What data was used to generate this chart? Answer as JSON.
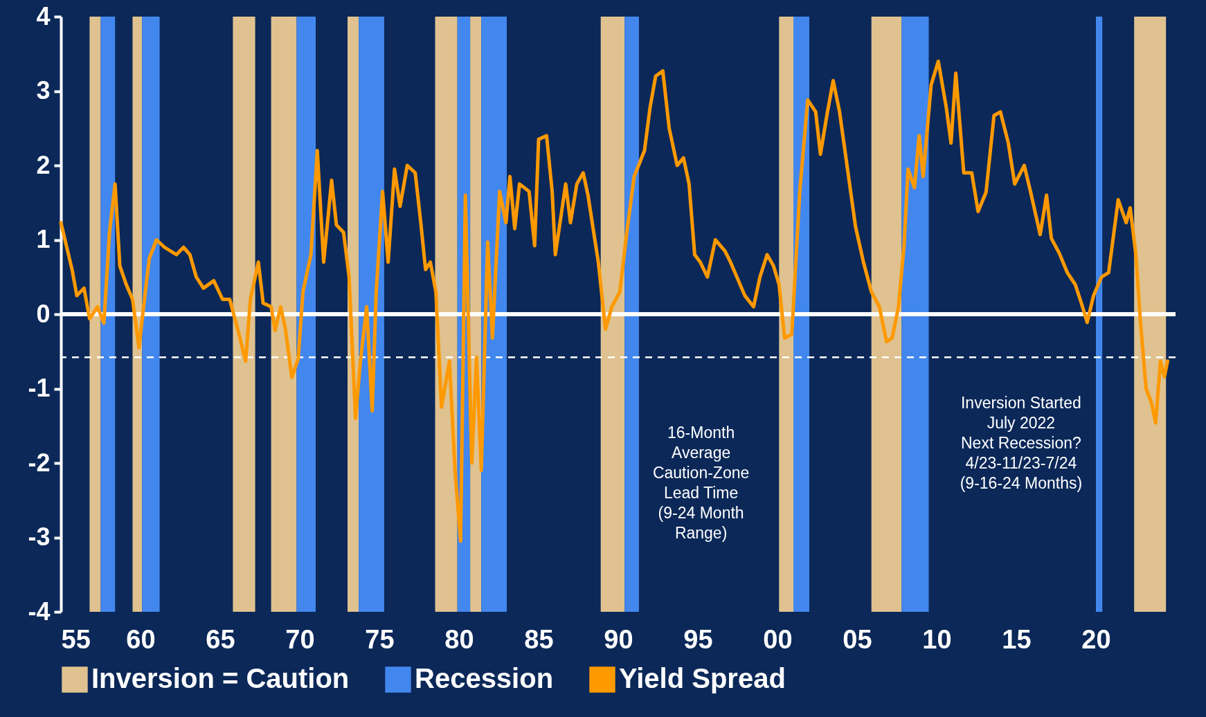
{
  "chart_data": {
    "type": "line",
    "xlim": [
      1955,
      2025
    ],
    "xticks": [
      {
        "value": 1955,
        "label": "55"
      },
      {
        "value": 1960,
        "label": "60"
      },
      {
        "value": 1965,
        "label": "65"
      },
      {
        "value": 1970,
        "label": "70"
      },
      {
        "value": 1975,
        "label": "75"
      },
      {
        "value": 1980,
        "label": "80"
      },
      {
        "value": 1985,
        "label": "85"
      },
      {
        "value": 1990,
        "label": "90"
      },
      {
        "value": 1995,
        "label": "95"
      },
      {
        "value": 2000,
        "label": "00"
      },
      {
        "value": 2005,
        "label": "05"
      },
      {
        "value": 2010,
        "label": "10"
      },
      {
        "value": 2015,
        "label": "15"
      },
      {
        "value": 2020,
        "label": "20"
      }
    ],
    "ylim": [
      -4,
      4
    ],
    "yticks": [
      -4,
      -3,
      -2,
      -1,
      0,
      1,
      2,
      3,
      4
    ],
    "grid": false,
    "legend": "bottom",
    "series": [
      {
        "name": "Yield Spread",
        "color": "#ff9900",
        "x": [
          1955.0,
          1955.4,
          1955.7,
          1956.0,
          1956.45,
          1956.8,
          1957.3,
          1957.7,
          1958.05,
          1958.4,
          1958.7,
          1959.1,
          1959.5,
          1959.9,
          1960.3,
          1960.55,
          1961.0,
          1961.5,
          1962.25,
          1962.7,
          1963.1,
          1963.5,
          1963.95,
          1964.6,
          1965.15,
          1965.6,
          1966.1,
          1966.6,
          1966.9,
          1967.4,
          1967.7,
          1968.2,
          1968.45,
          1968.8,
          1969.1,
          1969.5,
          1969.9,
          1970.2,
          1970.7,
          1971.1,
          1971.5,
          1972.0,
          1972.3,
          1972.75,
          1973.1,
          1973.5,
          1973.8,
          1974.2,
          1974.55,
          1974.8,
          1975.2,
          1975.55,
          1975.95,
          1976.3,
          1976.75,
          1977.25,
          1977.6,
          1977.9,
          1978.2,
          1978.55,
          1978.9,
          1979.4,
          1979.75,
          1980.1,
          1980.4,
          1980.8,
          1981.1,
          1981.4,
          1981.8,
          1982.1,
          1982.55,
          1982.95,
          1983.2,
          1983.5,
          1983.8,
          1984.4,
          1984.75,
          1985.0,
          1985.5,
          1985.85,
          1986.05,
          1986.7,
          1987.0,
          1987.4,
          1987.8,
          1988.1,
          1988.75,
          1989.2,
          1989.6,
          1990.1,
          1990.55,
          1991.0,
          1991.65,
          1992.0,
          1992.35,
          1992.8,
          1993.2,
          1993.7,
          1994.1,
          1994.45,
          1994.8,
          1995.15,
          1995.6,
          1996.1,
          1996.7,
          1997.05,
          1997.55,
          1997.95,
          1998.5,
          1998.9,
          1999.35,
          1999.75,
          2000.1,
          2000.45,
          2000.9,
          2001.4,
          2001.9,
          2002.4,
          2002.7,
          2003.1,
          2003.5,
          2003.9,
          2004.4,
          2004.9,
          2005.4,
          2005.9,
          2006.4,
          2006.85,
          2007.2,
          2007.6,
          2007.95,
          2008.2,
          2008.6,
          2008.9,
          2009.15,
          2009.65,
          2010.1,
          2010.6,
          2010.9,
          2011.2,
          2011.7,
          2012.2,
          2012.6,
          2013.1,
          2013.6,
          2014.0,
          2014.5,
          2014.9,
          2015.5,
          2015.9,
          2016.5,
          2016.9,
          2017.2,
          2017.7,
          2018.2,
          2018.7,
          2019.1,
          2019.45,
          2019.85,
          2020.35,
          2020.8,
          2021.4,
          2021.9,
          2022.15,
          2022.5,
          2022.8,
          2023.15,
          2023.5,
          2023.75,
          2024.05,
          2024.3,
          2024.5
        ],
        "values": [
          1.23,
          0.87,
          0.6,
          0.25,
          0.35,
          -0.06,
          0.1,
          -0.12,
          1.1,
          1.75,
          0.65,
          0.4,
          0.2,
          -0.45,
          0.3,
          0.75,
          1.0,
          0.9,
          0.8,
          0.9,
          0.8,
          0.5,
          0.35,
          0.45,
          0.2,
          0.2,
          -0.2,
          -0.63,
          0.2,
          0.7,
          0.15,
          0.1,
          -0.22,
          0.1,
          -0.2,
          -0.85,
          -0.6,
          0.3,
          0.8,
          2.2,
          0.7,
          1.8,
          1.2,
          1.1,
          0.5,
          -1.4,
          -0.65,
          0.1,
          -1.3,
          0.3,
          1.65,
          0.7,
          1.95,
          1.45,
          2.0,
          1.9,
          1.23,
          0.6,
          0.7,
          0.3,
          -1.25,
          -0.63,
          -2.1,
          -3.05,
          1.6,
          -2.0,
          -0.58,
          -2.1,
          0.97,
          -0.32,
          1.65,
          1.23,
          1.85,
          1.15,
          1.75,
          1.65,
          0.92,
          2.35,
          2.4,
          1.65,
          0.8,
          1.75,
          1.23,
          1.75,
          1.9,
          1.6,
          0.7,
          -0.2,
          0.1,
          0.3,
          1.12,
          1.85,
          2.2,
          2.78,
          3.2,
          3.27,
          2.5,
          2.0,
          2.1,
          1.75,
          0.8,
          0.7,
          0.5,
          1.0,
          0.85,
          0.7,
          0.45,
          0.25,
          0.1,
          0.5,
          0.8,
          0.65,
          0.4,
          -0.32,
          -0.27,
          1.65,
          2.88,
          2.72,
          2.15,
          2.67,
          3.14,
          2.72,
          1.95,
          1.18,
          0.7,
          0.3,
          0.1,
          -0.37,
          -0.32,
          0.1,
          0.92,
          1.95,
          1.7,
          2.4,
          1.85,
          3.08,
          3.4,
          2.78,
          2.3,
          3.24,
          1.9,
          1.9,
          1.38,
          1.64,
          2.67,
          2.72,
          2.3,
          1.75,
          2.0,
          1.64,
          1.07,
          1.6,
          1.02,
          0.82,
          0.56,
          0.4,
          0.14,
          -0.11,
          0.25,
          0.5,
          0.56,
          1.54,
          1.23,
          1.43,
          0.82,
          -0.11,
          -1.0,
          -1.2,
          -1.46,
          -0.63,
          -0.84,
          -0.63
        ]
      }
    ],
    "bands": [
      {
        "axis": "x",
        "from": 1956.8,
        "to": 1957.5,
        "color": "#dfc28f",
        "label": "Inversion = Caution"
      },
      {
        "axis": "x",
        "from": 1959.5,
        "to": 1960.1,
        "color": "#dfc28f"
      },
      {
        "axis": "x",
        "from": 1965.8,
        "to": 1967.2,
        "color": "#dfc28f"
      },
      {
        "axis": "x",
        "from": 1968.2,
        "to": 1969.8,
        "color": "#dfc28f"
      },
      {
        "axis": "x",
        "from": 1973.0,
        "to": 1973.7,
        "color": "#dfc28f"
      },
      {
        "axis": "x",
        "from": 1978.5,
        "to": 1979.9,
        "color": "#dfc28f"
      },
      {
        "axis": "x",
        "from": 1980.7,
        "to": 1981.4,
        "color": "#dfc28f"
      },
      {
        "axis": "x",
        "from": 1988.9,
        "to": 1990.4,
        "color": "#dfc28f"
      },
      {
        "axis": "x",
        "from": 2000.1,
        "to": 2001.0,
        "color": "#dfc28f"
      },
      {
        "axis": "x",
        "from": 2005.9,
        "to": 2007.8,
        "color": "#dfc28f"
      },
      {
        "axis": "x",
        "from": 2022.4,
        "to": 2024.4,
        "color": "#dfc28f"
      },
      {
        "axis": "x",
        "from": 1957.5,
        "to": 1958.4,
        "color": "#4287ee",
        "label": "Recession"
      },
      {
        "axis": "x",
        "from": 1960.1,
        "to": 1961.2,
        "color": "#4287ee"
      },
      {
        "axis": "x",
        "from": 1969.8,
        "to": 1971.0,
        "color": "#4287ee"
      },
      {
        "axis": "x",
        "from": 1973.7,
        "to": 1975.3,
        "color": "#4287ee"
      },
      {
        "axis": "x",
        "from": 1979.9,
        "to": 1980.7,
        "color": "#4287ee"
      },
      {
        "axis": "x",
        "from": 1981.4,
        "to": 1983.0,
        "color": "#4287ee"
      },
      {
        "axis": "x",
        "from": 1990.4,
        "to": 1991.3,
        "color": "#4287ee"
      },
      {
        "axis": "x",
        "from": 2001.0,
        "to": 2002.0,
        "color": "#4287ee"
      },
      {
        "axis": "x",
        "from": 2007.8,
        "to": 2009.5,
        "color": "#4287ee"
      },
      {
        "axis": "x",
        "from": 2020.0,
        "to": 2020.4,
        "color": "#4287ee"
      }
    ],
    "ref_lines": [
      {
        "axis": "y",
        "value": 0,
        "color": "#ffffff",
        "line_style": "solid"
      },
      {
        "axis": "y",
        "value": -0.58,
        "color": "#ffffff",
        "line_style": "dashed"
      }
    ],
    "annotations": [
      "16-Month\nAverage\nCaution-Zone\nLead Time\n(9-24 Month\nRange)",
      "Inversion Started\nJuly 2022\n\nNext Recession?\n4/23-11/23-7/24\n(9-16-24 Months)"
    ]
  }
}
